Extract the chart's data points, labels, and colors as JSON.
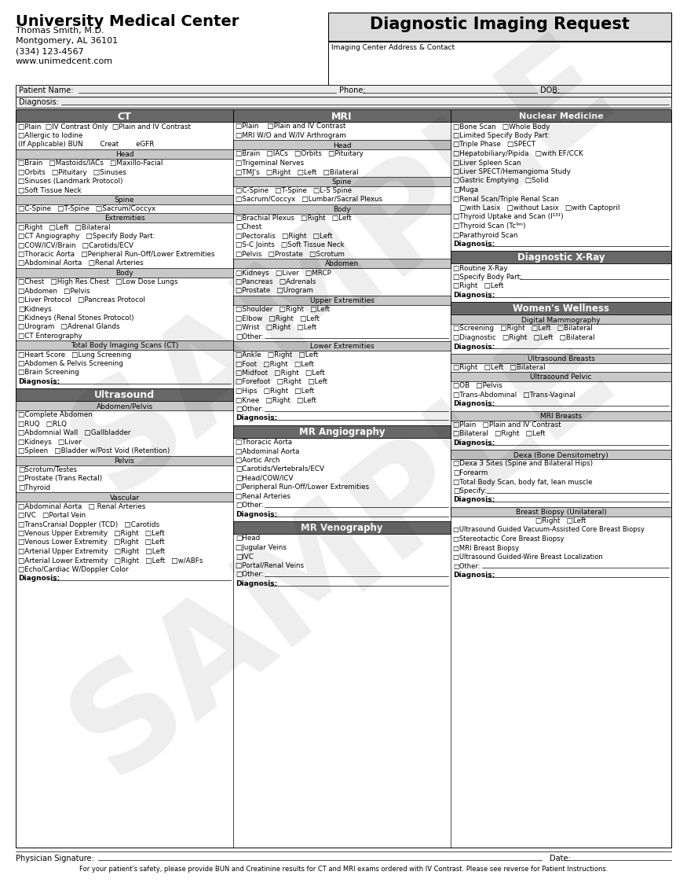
{
  "title": "Diagnostic Imaging Request",
  "clinic_name": "University Medical Center",
  "clinic_info": [
    "Thomas Smith, M.D.",
    "Montgomery, AL 36101",
    "(334) 123-4567",
    "www.unimedcent.com"
  ],
  "imaging_center_label": "Imaging Center Address & Contact",
  "col1_header": "CT",
  "col2_header": "MRI",
  "col3_header": "Nuclear Medicine",
  "footer_sig": "Physician Signature: ",
  "footer_date": "Date: ",
  "footer_note": "For your patient's safety, please provide BUN and Creatinine results for CT and MRI exams ordered with IV Contrast. Please see reverse for Patient Instructions.",
  "ct_top": [
    "□Plain  □IV Contrast Only  □Plain and IV Contrast",
    "□Allergic to Iodine",
    "(If Applicable) BUN        Creat        eGFR"
  ],
  "ct_head": [
    "□Brain   □Mastoids/IACs   □Maxillo-Facial",
    "□Orbits   □Pituitary   □Sinuses",
    "□Sinuses (Landmark Protocol)",
    "□Soft Tissue Neck"
  ],
  "ct_spine": [
    "□C-Spine   □T-Spine   □Sacrum/Coccyx"
  ],
  "ct_extremities": [
    "□Right   □Left   □Bilateral",
    "□CT Angiography   □Specify Body Part:",
    "□COW/ICV/Brain   □Carotids/ECV",
    "□Thoracic Aorta   □Peripheral Run-Off/Lower Extremities",
    "□Abdominal Aorta   □Renal Arteries"
  ],
  "ct_body": [
    "□Chest   □High Res.Chest   □Low Dose Lungs",
    "□Abdomen   □Pelvis",
    "□Liver Protocol   □Pancreas Protocol",
    "□Kidneys",
    "□Kidneys (Renal Stones Protocol)",
    "□Urogram   □Adrenal Glands",
    "□CT Enterography"
  ],
  "ct_total": [
    "□Heart Score   □Lung Screening",
    "□Abdomen & Pelvis Screening",
    "□Brain Screening"
  ],
  "mri_top": [
    "□Plain    □Plain and IV Contrast",
    "□MRI W/O and W/IV Arthrogram"
  ],
  "mri_head": [
    "□Brain   □IACs   □Orbits   □Pituitary",
    "□Trigeminal Nerves",
    "□TMJ's   □Right   □Left   □Bilateral"
  ],
  "mri_spine": [
    "□C-Spine   □T-Spine   □L-S Spine",
    "□Sacrum/Coccyx   □Lumbar/Sacral Plexus"
  ],
  "mri_body": [
    "□Brachial Plexus   □Right   □Left",
    "□Chest",
    "□Pectoralis   □Right   □Left",
    "□S-C Joints   □Soft Tissue Neck",
    "□Pelvis   □Prostate   □Scrotum"
  ],
  "mri_abdomen": [
    "□Kidneys   □Liver   □MRCP",
    "□Pancreas   □Adrenals",
    "□Prostate   □Urogram"
  ],
  "mri_upper": [
    "□Shoulder   □Right   □Left",
    "□Elbow   □Right   □Left",
    "□Wrist   □Right   □Left",
    "□Other:"
  ],
  "mri_lower": [
    "□Ankle   □Right   □Left",
    "□Foot   □Right   □Left",
    "□Midfoot   □Right   □Left",
    "□Forefoot   □Right   □Left",
    "□Hips   □Right   □Left",
    "□Knee   □Right   □Left",
    "□Other:"
  ],
  "mrangio": [
    "□Thoracic Aorta",
    "□Abdominal Aorta",
    "□Aortic Arch",
    "□Carotids/Vertebrals/ECV",
    "□Head/COW/ICV",
    "□Peripheral Run-Off/Lower Extremities",
    "□Renal Arteries",
    "□Other:"
  ],
  "mrveno": [
    "□Head",
    "□Jugular Veins",
    "□IVC",
    "□Portal/Renal Veins",
    "□Other:"
  ],
  "nucmed": [
    "□Bone Scan   □Whole Body",
    "□Limited Specify Body Part:",
    "□Triple Phase   □SPECT",
    "□Hepatobiliary/Pipida   □with EF/CCK",
    "□Liver Spleen Scan",
    "□Liver SPECT/Hemangioma Study",
    "□Gastric Emptying   □Solid",
    "□Muga",
    "□Renal Scan/Triple Renal Scan",
    "   □with Lasix   □without Lasix   □with Captopril",
    "□Thyroid Uptake and Scan (I¹³¹)",
    "□Thyroid Scan (Tc⁹ᵐ)",
    "□Parathyroid Scan"
  ],
  "diag_xray": [
    "□Routine X-Ray",
    "□Specify Body Part:",
    "□Right   □Left"
  ],
  "digital_mammo": [
    "□Screening   □Right   □Left   □Bilateral",
    "□Diagnostic   □Right   □Left   □Bilateral"
  ],
  "us_breasts": [
    "□Right   □Left   □Bilateral"
  ],
  "us_pelvic": [
    "□OB   □Pelvis",
    "□Trans-Abdominal   □Trans-Vaginal"
  ],
  "mri_breasts": [
    "□Plain   □Plain and IV Contrast",
    "□Bilateral   □Right   □Left"
  ],
  "dexa": [
    "□Dexa 3 Sites (Spine and Bilateral Hips)",
    "□Forearm",
    "□Total Body Scan, body fat, lean muscle",
    "□Specify:"
  ],
  "biopsy": [
    "□Ultrasound Guided Vacuum-Assisted Core Breast Biopsy",
    "□Stereotactic Core Breast Biopsy",
    "□MRI Breast Biopsy",
    "□Ultrasound Guided-Wire Breast Localization",
    "□Other:"
  ],
  "us_abdomen": [
    "□Complete Abdomen",
    "□RUQ   □RLQ",
    "□Abdomnial Wall   □Gallbladder",
    "□Kidneys   □Liver",
    "□Spleen   □Bladder w/Post Void (Retention)"
  ],
  "us_pelvis": [
    "□Scrotum/Testes",
    "□Prostate (Trans Rectal)",
    "□Thyroid"
  ],
  "us_vascular": [
    "□Abdominal Aorta   □ Renal Arteries",
    "□IVC   □Portal Vein",
    "□TransCranial Doppler (TCD)   □Carotids",
    "□Venous Upper Extremity   □Right   □Left",
    "□Venous Lower Extremity   □Right   □Left",
    "□Arterial Upper Extremity   □Right   □Left",
    "□Arterial Lower Extremity   □Right   □Left   □w/ABFs",
    "□Echo/Cardiac W/Doppler Color"
  ]
}
